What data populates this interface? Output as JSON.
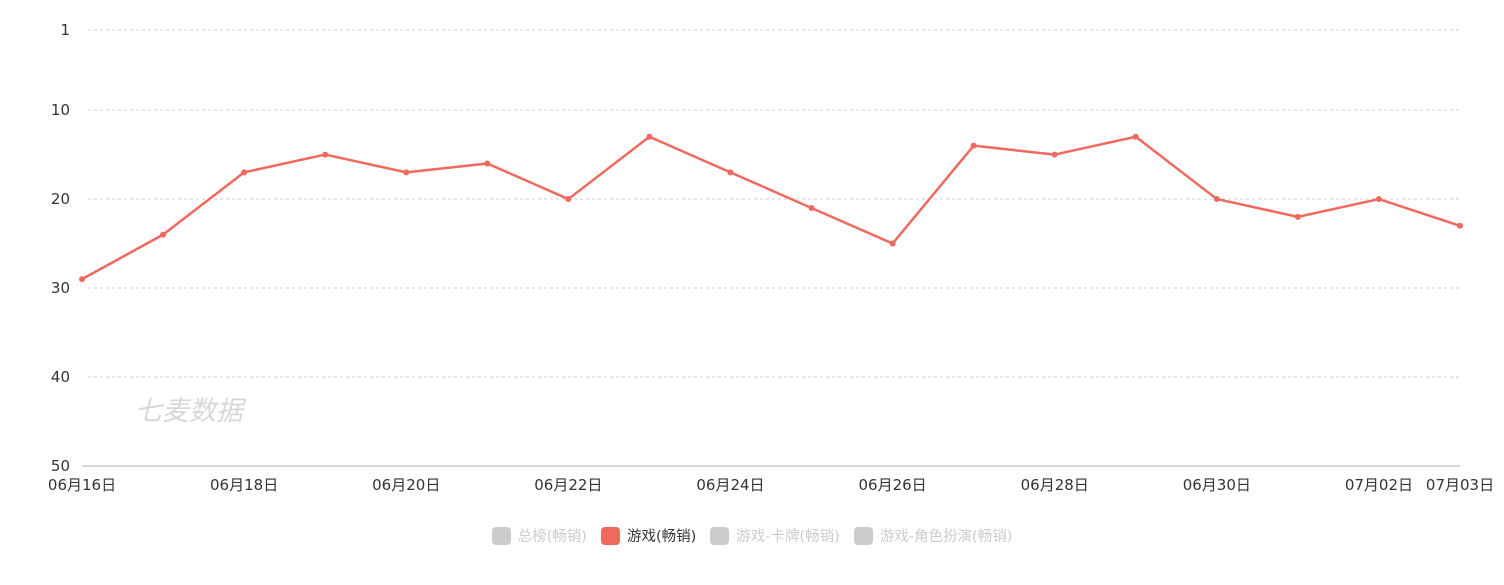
{
  "colors": {
    "series": "#f0695f",
    "inactive": "#cccccc",
    "grid": "#cccccc",
    "axis": "#b0b0b0",
    "text": "#333333"
  },
  "watermark": "七麦数据",
  "legend": [
    {
      "label": "总榜(畅销)",
      "active": false
    },
    {
      "label": "游戏(畅销)",
      "active": true
    },
    {
      "label": "游戏-卡牌(畅销)",
      "active": false
    },
    {
      "label": "游戏-角色扮演(畅销)",
      "active": false
    }
  ],
  "chart_data": {
    "type": "line",
    "x": [
      "06月16日",
      "06月17日",
      "06月18日",
      "06月19日",
      "06月20日",
      "06月21日",
      "06月22日",
      "06月23日",
      "06月24日",
      "06月25日",
      "06月26日",
      "06月27日",
      "06月28日",
      "06月29日",
      "06月30日",
      "07月01日",
      "07月02日",
      "07月03日"
    ],
    "xtick_labels": [
      "06月16日",
      "06月18日",
      "06月20日",
      "06月22日",
      "06月24日",
      "06月26日",
      "06月28日",
      "06月30日",
      "07月02日",
      "07月03日"
    ],
    "yticks": [
      1,
      10,
      20,
      30,
      40,
      50
    ],
    "ylim": [
      1,
      50
    ],
    "y_inverted": true,
    "grid": true,
    "legend_position": "bottom",
    "series": [
      {
        "name": "游戏(畅销)",
        "values": [
          29,
          24,
          17,
          15,
          17,
          16,
          20,
          13,
          17,
          21,
          25,
          14,
          15,
          13,
          20,
          22,
          20,
          23
        ]
      }
    ]
  }
}
